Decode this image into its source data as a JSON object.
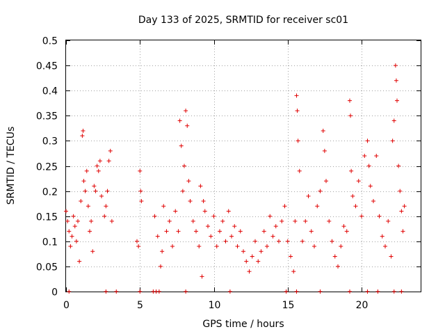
{
  "chart_data": {
    "type": "scatter",
    "title": "Day 133 of 2025, SRMTID for receiver sc01",
    "xlabel": "GPS time / hours",
    "ylabel": "SRMTID / TECUs",
    "xlim": [
      0,
      24
    ],
    "ylim": [
      0,
      0.5
    ],
    "x_ticks": [
      0,
      5,
      10,
      15,
      20
    ],
    "x_tick_labels": [
      "0",
      "5",
      "10",
      "15",
      "20"
    ],
    "y_ticks": [
      0,
      0.05,
      0.1,
      0.15,
      0.2,
      0.25,
      0.3,
      0.35,
      0.4,
      0.45,
      0.5
    ],
    "y_tick_labels": [
      "0",
      "0.05",
      "0.1",
      "0.15",
      "0.2",
      "0.25",
      "0.3",
      "0.35",
      "0.4",
      "0.45",
      "0.5"
    ],
    "grid": true,
    "marker": "+",
    "color": "#e00000",
    "series": [
      {
        "name": "SRMTID",
        "points": [
          [
            0.0,
            0.16
          ],
          [
            0.1,
            0.14
          ],
          [
            0.2,
            0.12
          ],
          [
            0.3,
            0.09
          ],
          [
            0.4,
            0.11
          ],
          [
            0.5,
            0.15
          ],
          [
            0.6,
            0.13
          ],
          [
            0.7,
            0.1
          ],
          [
            0.8,
            0.14
          ],
          [
            0.9,
            0.06
          ],
          [
            1.0,
            0.18
          ],
          [
            1.1,
            0.31
          ],
          [
            1.15,
            0.32
          ],
          [
            1.2,
            0.22
          ],
          [
            1.3,
            0.2
          ],
          [
            1.4,
            0.24
          ],
          [
            1.5,
            0.17
          ],
          [
            1.6,
            0.12
          ],
          [
            1.7,
            0.14
          ],
          [
            1.8,
            0.08
          ],
          [
            1.9,
            0.21
          ],
          [
            2.0,
            0.2
          ],
          [
            2.1,
            0.25
          ],
          [
            2.2,
            0.24
          ],
          [
            2.3,
            0.26
          ],
          [
            2.4,
            0.19
          ],
          [
            2.6,
            0.15
          ],
          [
            2.7,
            0.17
          ],
          [
            2.8,
            0.2
          ],
          [
            2.9,
            0.26
          ],
          [
            3.0,
            0.28
          ],
          [
            3.1,
            0.14
          ],
          [
            4.8,
            0.1
          ],
          [
            4.9,
            0.09
          ],
          [
            5.0,
            0.24
          ],
          [
            5.05,
            0.2
          ],
          [
            5.1,
            0.18
          ],
          [
            6.0,
            0.15
          ],
          [
            6.2,
            0.11
          ],
          [
            6.4,
            0.05
          ],
          [
            6.5,
            0.08
          ],
          [
            6.6,
            0.17
          ],
          [
            6.8,
            0.12
          ],
          [
            7.0,
            0.14
          ],
          [
            7.2,
            0.09
          ],
          [
            7.4,
            0.16
          ],
          [
            7.6,
            0.12
          ],
          [
            7.7,
            0.34
          ],
          [
            7.8,
            0.29
          ],
          [
            7.9,
            0.2
          ],
          [
            8.0,
            0.25
          ],
          [
            8.1,
            0.36
          ],
          [
            8.2,
            0.33
          ],
          [
            8.3,
            0.22
          ],
          [
            8.4,
            0.18
          ],
          [
            8.6,
            0.14
          ],
          [
            8.8,
            0.12
          ],
          [
            9.0,
            0.09
          ],
          [
            9.1,
            0.21
          ],
          [
            9.2,
            0.03
          ],
          [
            9.3,
            0.18
          ],
          [
            9.4,
            0.16
          ],
          [
            9.6,
            0.13
          ],
          [
            9.8,
            0.11
          ],
          [
            10.0,
            0.15
          ],
          [
            10.2,
            0.09
          ],
          [
            10.4,
            0.12
          ],
          [
            10.6,
            0.14
          ],
          [
            10.8,
            0.1
          ],
          [
            11.0,
            0.16
          ],
          [
            11.2,
            0.11
          ],
          [
            11.4,
            0.13
          ],
          [
            11.6,
            0.09
          ],
          [
            11.8,
            0.12
          ],
          [
            12.0,
            0.08
          ],
          [
            12.2,
            0.06
          ],
          [
            12.4,
            0.04
          ],
          [
            12.6,
            0.07
          ],
          [
            12.8,
            0.1
          ],
          [
            13.0,
            0.06
          ],
          [
            13.2,
            0.08
          ],
          [
            13.4,
            0.12
          ],
          [
            13.6,
            0.09
          ],
          [
            13.8,
            0.15
          ],
          [
            14.0,
            0.11
          ],
          [
            14.2,
            0.13
          ],
          [
            14.4,
            0.1
          ],
          [
            14.6,
            0.14
          ],
          [
            14.8,
            0.17
          ],
          [
            15.0,
            0.1
          ],
          [
            15.2,
            0.07
          ],
          [
            15.4,
            0.04
          ],
          [
            15.5,
            0.14
          ],
          [
            15.6,
            0.39
          ],
          [
            15.65,
            0.36
          ],
          [
            15.7,
            0.3
          ],
          [
            15.8,
            0.24
          ],
          [
            16.0,
            0.1
          ],
          [
            16.2,
            0.14
          ],
          [
            16.4,
            0.19
          ],
          [
            16.6,
            0.12
          ],
          [
            16.8,
            0.09
          ],
          [
            17.0,
            0.17
          ],
          [
            17.2,
            0.2
          ],
          [
            17.4,
            0.32
          ],
          [
            17.5,
            0.28
          ],
          [
            17.6,
            0.22
          ],
          [
            17.8,
            0.14
          ],
          [
            18.0,
            0.1
          ],
          [
            18.2,
            0.07
          ],
          [
            18.4,
            0.05
          ],
          [
            18.6,
            0.09
          ],
          [
            18.8,
            0.13
          ],
          [
            19.0,
            0.12
          ],
          [
            19.2,
            0.38
          ],
          [
            19.25,
            0.35
          ],
          [
            19.3,
            0.24
          ],
          [
            19.4,
            0.19
          ],
          [
            19.6,
            0.17
          ],
          [
            19.8,
            0.22
          ],
          [
            20.0,
            0.15
          ],
          [
            20.2,
            0.27
          ],
          [
            20.4,
            0.3
          ],
          [
            20.5,
            0.25
          ],
          [
            20.6,
            0.21
          ],
          [
            20.8,
            0.18
          ],
          [
            21.0,
            0.27
          ],
          [
            21.2,
            0.15
          ],
          [
            21.4,
            0.11
          ],
          [
            21.6,
            0.09
          ],
          [
            21.8,
            0.14
          ],
          [
            22.0,
            0.07
          ],
          [
            22.1,
            0.3
          ],
          [
            22.2,
            0.34
          ],
          [
            22.3,
            0.45
          ],
          [
            22.35,
            0.42
          ],
          [
            22.4,
            0.38
          ],
          [
            22.5,
            0.25
          ],
          [
            22.6,
            0.2
          ],
          [
            22.7,
            0.16
          ],
          [
            22.8,
            0.12
          ],
          [
            22.9,
            0.17
          ]
        ]
      }
    ],
    "axis_points": [
      0.2,
      2.7,
      3.4,
      5.0,
      5.9,
      6.1,
      6.3,
      8.1,
      11.1,
      14.9,
      15.6,
      17.2,
      19.2,
      20.4,
      21.1,
      22.2,
      22.7
    ]
  }
}
